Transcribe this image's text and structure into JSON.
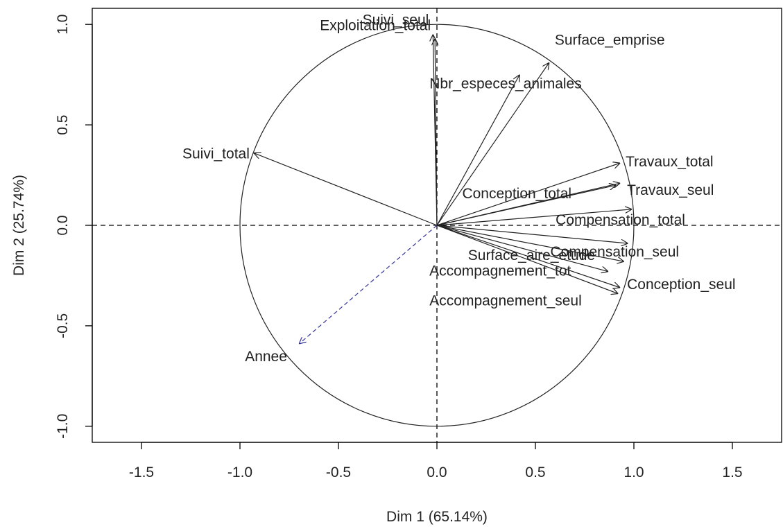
{
  "chart_data": {
    "type": "correlation_circle",
    "title": "",
    "xlabel": "Dim 1 (65.14%)",
    "ylabel": "Dim 2 (25.74%)",
    "xlim": [
      -1.75,
      1.75
    ],
    "ylim": [
      -1.08,
      1.08
    ],
    "xticks": [
      "-1.5",
      "-1.0",
      "-0.5",
      "0.0",
      "0.5",
      "1.0",
      "1.5"
    ],
    "yticks": [
      "-1.0",
      "-0.5",
      "0.0",
      "0.5",
      "1.0"
    ],
    "grid": false,
    "unit_circle": true,
    "reference_lines": "dashed lines at x=0 and y=0",
    "active_color": "#000000",
    "supplementary_color": "#333399",
    "variables": [
      {
        "name": "Exploitation_total",
        "x": -0.01,
        "y": 0.93,
        "supplementary": false
      },
      {
        "name": "Suivi_seul",
        "x": -0.02,
        "y": 0.95,
        "supplementary": false
      },
      {
        "name": "Surface_emprise",
        "x": 0.57,
        "y": 0.81,
        "supplementary": false
      },
      {
        "name": "Nbr_especes_animales",
        "x": 0.42,
        "y": 0.75,
        "supplementary": false
      },
      {
        "name": "Suivi_total",
        "x": -0.93,
        "y": 0.36,
        "supplementary": false
      },
      {
        "name": "Travaux_total",
        "x": 0.93,
        "y": 0.31,
        "supplementary": false
      },
      {
        "name": "Conception_total",
        "x": 0.91,
        "y": 0.2,
        "supplementary": false
      },
      {
        "name": "Travaux_seul",
        "x": 0.93,
        "y": 0.21,
        "supplementary": false
      },
      {
        "name": "Compensation_total",
        "x": 0.99,
        "y": 0.08,
        "supplementary": false
      },
      {
        "name": "Compensation_seul",
        "x": 0.97,
        "y": -0.09,
        "supplementary": false
      },
      {
        "name": "Surface_aire_etude",
        "x": 0.95,
        "y": -0.18,
        "supplementary": false
      },
      {
        "name": "Accompagnement_tot",
        "x": 0.87,
        "y": -0.23,
        "supplementary": false
      },
      {
        "name": "Conception_seul",
        "x": 0.93,
        "y": -0.31,
        "supplementary": false
      },
      {
        "name": "Accompagnement_seul",
        "x": 0.92,
        "y": -0.34,
        "supplementary": false
      },
      {
        "name": "Annee",
        "x": -0.7,
        "y": -0.59,
        "supplementary": true
      }
    ]
  }
}
